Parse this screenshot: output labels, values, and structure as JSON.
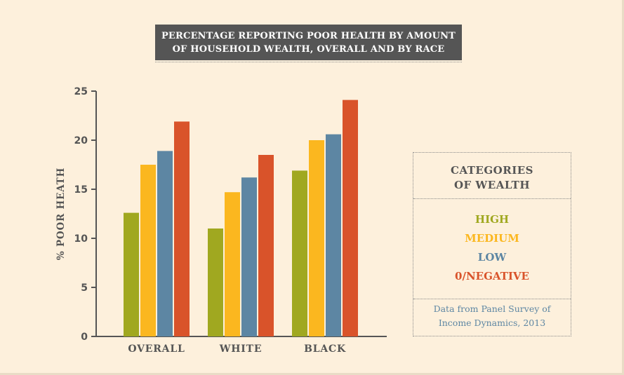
{
  "title": "PERCENTAGE REPORTING POOR HEALTH BY AMOUNT OF HOUSEHOLD WEALTH, OVERALL AND BY RACE",
  "legend": {
    "title_lines": [
      "CATEGORIES",
      "OF WEALTH"
    ],
    "note_lines": [
      "Data from Panel Survey of",
      "Income Dynamics, 2013"
    ]
  },
  "chart_data": {
    "type": "bar",
    "title": "PERCENTAGE REPORTING POOR HEALTH BY AMOUNT OF HOUSEHOLD WEALTH, OVERALL AND BY RACE",
    "xlabel": "",
    "ylabel": "% POOR HEATH",
    "ylim": [
      0,
      25
    ],
    "yticks": [
      0,
      5,
      10,
      15,
      20,
      25
    ],
    "grid": false,
    "legend_position": "right",
    "categories": [
      "OVERALL",
      "WHITE",
      "BLACK"
    ],
    "series": [
      {
        "name": "HIGH",
        "color": "#a0a820",
        "values": [
          12.6,
          11.0,
          16.9
        ]
      },
      {
        "name": "MEDIUM",
        "color": "#fbb71f",
        "values": [
          17.5,
          14.7,
          20.0
        ]
      },
      {
        "name": "LOW",
        "color": "#5d86a3",
        "values": [
          18.9,
          16.2,
          20.6
        ]
      },
      {
        "name": "0/NEGATIVE",
        "color": "#d9532a",
        "values": [
          21.9,
          18.5,
          24.1
        ]
      }
    ]
  }
}
